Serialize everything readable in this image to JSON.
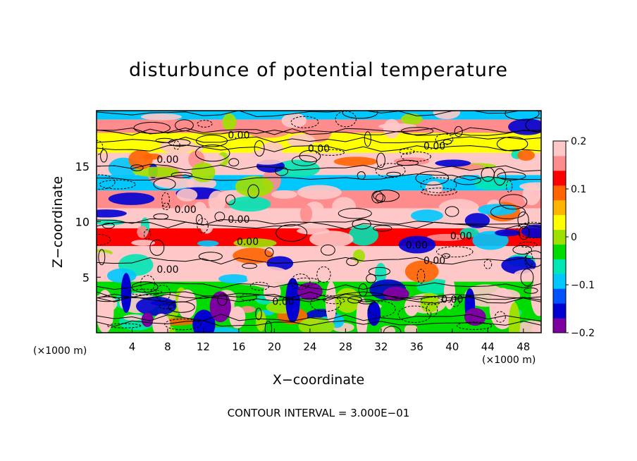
{
  "chart_data": {
    "type": "heatmap",
    "title": "disturbunce of potential temperature",
    "xlabel": "X−coordinate",
    "ylabel": "Z−coordinate",
    "x_unit_label": "(×1000 m)",
    "x_ticks": [
      4,
      8,
      12,
      16,
      20,
      24,
      28,
      32,
      36,
      40,
      44,
      48
    ],
    "y_ticks": [
      5,
      10,
      15
    ],
    "xlim": [
      0,
      50
    ],
    "ylim": [
      0,
      20
    ],
    "colorbar": {
      "range": [
        -0.2,
        0.2
      ],
      "ticks": [
        "0.2",
        "0.1",
        "0",
        "−0.1",
        "−0.2"
      ],
      "colors": [
        "#7d00a0",
        "#0000d2",
        "#0052ff",
        "#00c8ff",
        "#00e6b4",
        "#00dc00",
        "#a0e000",
        "#ffff00",
        "#ffb400",
        "#ff6400",
        "#ff0000",
        "#ff8c8c",
        "#ffc8c8"
      ]
    },
    "contour_labels": [
      "0.00",
      "0.00",
      "0.00",
      "0.00",
      "0.00",
      "0.00",
      "0.00",
      "0.00",
      "0.00",
      "0.00",
      "0.00",
      "0.00",
      "0.00"
    ],
    "contour_interval_text": "CONTOUR INTERVAL = 3.000E−01",
    "bands": [
      {
        "z": [
          19.2,
          20.0
        ],
        "value": -0.1
      },
      {
        "z": [
          18.0,
          19.2
        ],
        "value": 0.15
      },
      {
        "z": [
          16.2,
          18.0
        ],
        "value": 0.02
      },
      {
        "z": [
          14.2,
          16.2
        ],
        "value": 0.18
      },
      {
        "z": [
          12.8,
          14.2
        ],
        "value": -0.08
      },
      {
        "z": [
          11.2,
          12.8
        ],
        "value": 0.14
      },
      {
        "z": [
          9.4,
          11.2
        ],
        "value": 0.2
      },
      {
        "z": [
          7.8,
          9.4
        ],
        "value": 0.12
      },
      {
        "z": [
          6.0,
          7.8
        ],
        "value": 0.18
      },
      {
        "z": [
          4.6,
          6.0
        ],
        "value": 0.2
      },
      {
        "z": [
          0.0,
          4.6
        ],
        "value": -0.03
      }
    ]
  }
}
